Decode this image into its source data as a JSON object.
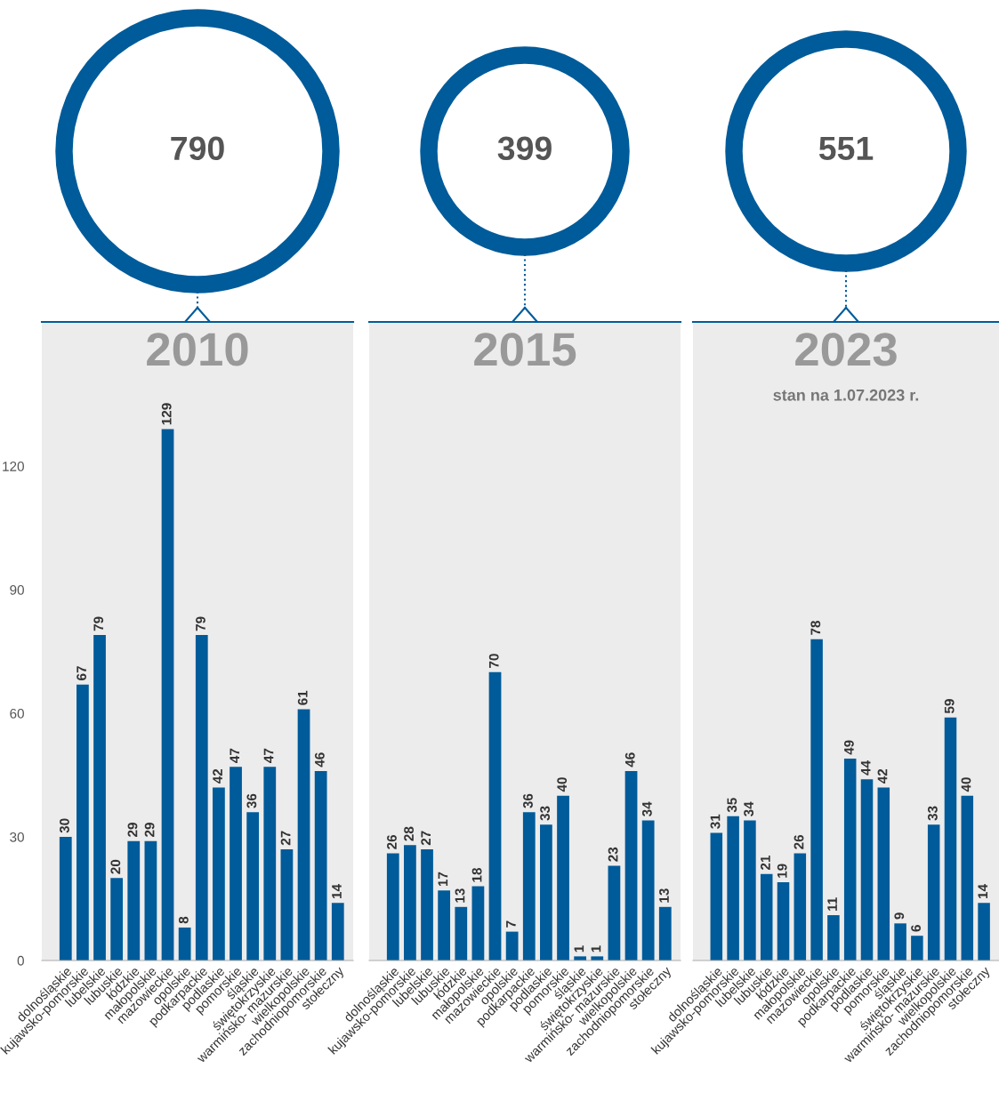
{
  "chart_data": [
    {
      "type": "bar",
      "title": "2010",
      "annotations": [
        "790"
      ],
      "categories": [
        "dolnośląskie",
        "kujawsko-pomorskie",
        "lubelskie",
        "lubuskie",
        "łódzkie",
        "małopolskie",
        "mazowieckie",
        "opolskie",
        "podkarpackie",
        "podlaskie",
        "pomorskie",
        "śląskie",
        "świętokrzyskie",
        "warmińsko- mazurskie",
        "wielkopolskie",
        "zachodniopomorskie",
        "stołeczny"
      ],
      "values": [
        30,
        67,
        79,
        20,
        29,
        29,
        129,
        8,
        79,
        42,
        47,
        36,
        47,
        27,
        61,
        46,
        14
      ],
      "color": "#005b9a",
      "data_labels": true,
      "ylim": [
        0,
        155
      ],
      "yticks": [
        0,
        30,
        60,
        90,
        120
      ],
      "grid": false
    },
    {
      "type": "bar",
      "title": "2015",
      "annotations": [
        "399"
      ],
      "categories": [
        "dolnośląskie",
        "kujawsko-pomorskie",
        "lubelskie",
        "lubuskie",
        "łódzkie",
        "małopolskie",
        "mazowieckie",
        "opolskie",
        "podkarpackie",
        "podlaskie",
        "pomorskie",
        "śląskie",
        "świętokrzyskie",
        "warmińsko- mazurskie",
        "wielkopolskie",
        "zachodniopomorskie",
        "stołeczny"
      ],
      "values": [
        26,
        28,
        27,
        17,
        13,
        18,
        70,
        7,
        36,
        33,
        40,
        1,
        1,
        23,
        46,
        34,
        13
      ],
      "color": "#005b9a",
      "data_labels": true,
      "ylim": [
        0,
        155
      ],
      "yticks": [
        0,
        30,
        60,
        90,
        120
      ],
      "tick_labels": "x",
      "grid": false
    },
    {
      "type": "bar",
      "title": "2023",
      "subtitle": "stan na 1.07.2023 r.",
      "annotations": [
        "551"
      ],
      "categories": [
        "dolnośląskie",
        "kujawsko-pomorskie",
        "lubelskie",
        "lubuskie",
        "łódzkie",
        "małopolskie",
        "mazowieckie",
        "opolskie",
        "podkarpackie",
        "podlaskie",
        "pomorskie",
        "śląskie",
        "świętokrzyskie",
        "warmińsko- mazurskie",
        "wielkopolskie",
        "zachodniopomorskie",
        "stołeczny"
      ],
      "values": [
        31,
        35,
        34,
        21,
        19,
        26,
        78,
        11,
        49,
        44,
        42,
        9,
        6,
        33,
        59,
        40,
        14
      ],
      "color": "#005b9a",
      "data_labels": true,
      "ylim": [
        0,
        155
      ],
      "yticks": [
        0,
        30,
        60,
        90,
        120
      ],
      "tick_labels": "x",
      "grid": false
    }
  ]
}
